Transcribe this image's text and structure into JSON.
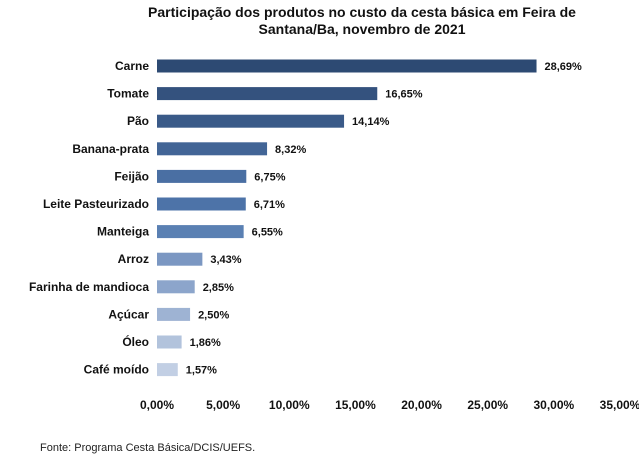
{
  "chart_data": {
    "type": "bar",
    "orientation": "horizontal",
    "title_lines": [
      "Participação dos produtos no custo da cesta básica em Feira de",
      "Santana/Ba, novembro de 2021"
    ],
    "categories": [
      "Carne",
      "Tomate",
      "Pão",
      "Banana-prata",
      "Feijão",
      "Leite Pasteurizado",
      "Manteiga",
      "Arroz",
      "Farinha de mandioca",
      "Açúcar",
      "Óleo",
      "Café moído"
    ],
    "values": [
      28.69,
      16.65,
      14.14,
      8.32,
      6.75,
      6.71,
      6.55,
      3.43,
      2.85,
      2.5,
      1.86,
      1.57
    ],
    "value_labels": [
      "28,69%",
      "16,65%",
      "14,14%",
      "8,32%",
      "6,75%",
      "6,71%",
      "6,55%",
      "3,43%",
      "2,85%",
      "2,50%",
      "1,86%",
      "1,57%"
    ],
    "bar_colors": [
      "#2d4a73",
      "#34527e",
      "#3a5a88",
      "#426596",
      "#4a6fa3",
      "#4d73a8",
      "#5a80b3",
      "#7b97c2",
      "#8ca5cb",
      "#9eb3d3",
      "#b2c3dc",
      "#c2cfe4"
    ],
    "xlim": [
      0,
      35
    ],
    "x_ticks": [
      0,
      5,
      10,
      15,
      20,
      25,
      30,
      35
    ],
    "x_tick_labels": [
      "0,00%",
      "5,00%",
      "10,00%",
      "15,00%",
      "20,00%",
      "25,00%",
      "30,00%",
      "35,00%"
    ],
    "xlabel": "",
    "ylabel": "",
    "grid": false,
    "legend": "none"
  },
  "source": "Fonte: Programa Cesta Básica/DCIS/UEFS."
}
